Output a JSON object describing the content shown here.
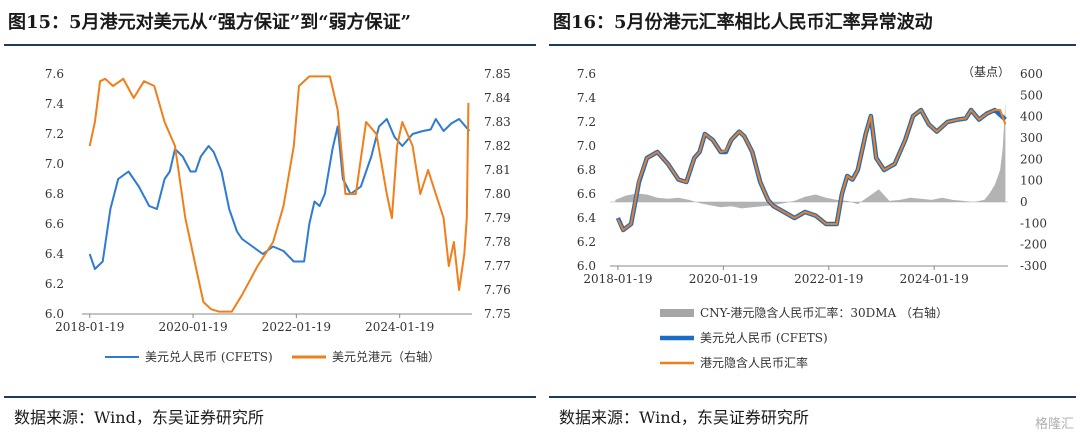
{
  "chart_data": [
    {
      "type": "line",
      "title": "图15：5月港元对美元从“强方保证”到“弱方保证”",
      "source": "数据来源：Wind，东吴证券研究所",
      "x_ticks": [
        "2018-01-19",
        "2020-01-19",
        "2022-01-19",
        "2024-01-19"
      ],
      "y_left": {
        "range": [
          6.0,
          7.6
        ],
        "ticks": [
          "6.0",
          "6.2",
          "6.4",
          "6.6",
          "6.8",
          "7.0",
          "7.2",
          "7.4",
          "7.6"
        ]
      },
      "y_right": {
        "range": [
          7.75,
          7.85
        ],
        "ticks": [
          "7.75",
          "7.76",
          "7.77",
          "7.78",
          "7.79",
          "7.80",
          "7.81",
          "7.82",
          "7.83",
          "7.84",
          "7.85"
        ]
      },
      "series": [
        {
          "name": "美元兑人民币 (CFETS)",
          "color": "#2f7bd1",
          "axis": "left",
          "x": [
            2018.05,
            2018.15,
            2018.3,
            2018.45,
            2018.6,
            2018.8,
            2019.0,
            2019.2,
            2019.35,
            2019.5,
            2019.6,
            2019.7,
            2019.85,
            2020.0,
            2020.1,
            2020.2,
            2020.35,
            2020.45,
            2020.6,
            2020.75,
            2020.9,
            2021.0,
            2021.2,
            2021.4,
            2021.6,
            2021.8,
            2022.0,
            2022.2,
            2022.3,
            2022.4,
            2022.5,
            2022.6,
            2022.75,
            2022.85,
            2022.95,
            2023.1,
            2023.3,
            2023.5,
            2023.65,
            2023.8,
            2023.95,
            2024.1,
            2024.3,
            2024.5,
            2024.65,
            2024.75,
            2024.9,
            2025.05,
            2025.2,
            2025.3,
            2025.4
          ],
          "y": [
            6.4,
            6.3,
            6.35,
            6.7,
            6.9,
            6.95,
            6.85,
            6.72,
            6.7,
            6.9,
            6.95,
            7.1,
            7.05,
            6.95,
            6.95,
            7.05,
            7.12,
            7.08,
            6.95,
            6.7,
            6.55,
            6.5,
            6.45,
            6.4,
            6.45,
            6.42,
            6.35,
            6.35,
            6.6,
            6.75,
            6.72,
            6.8,
            7.1,
            7.25,
            6.9,
            6.8,
            6.85,
            7.05,
            7.25,
            7.3,
            7.18,
            7.12,
            7.2,
            7.22,
            7.23,
            7.3,
            7.22,
            7.27,
            7.3,
            7.26,
            7.22
          ]
        },
        {
          "name": "美元兑港元（右轴）",
          "color": "#f07f1a",
          "axis": "right",
          "x": [
            2018.05,
            2018.15,
            2018.25,
            2018.35,
            2018.5,
            2018.7,
            2018.9,
            2019.1,
            2019.3,
            2019.5,
            2019.7,
            2019.9,
            2020.0,
            2020.1,
            2020.25,
            2020.4,
            2020.55,
            2020.8,
            2021.0,
            2021.3,
            2021.6,
            2021.8,
            2022.0,
            2022.1,
            2022.3,
            2022.5,
            2022.7,
            2022.85,
            2023.0,
            2023.2,
            2023.4,
            2023.6,
            2023.8,
            2023.9,
            2024.0,
            2024.1,
            2024.3,
            2024.45,
            2024.6,
            2024.75,
            2024.9,
            2025.0,
            2025.1,
            2025.2,
            2025.3,
            2025.35,
            2025.38
          ],
          "y": [
            7.82,
            7.83,
            7.847,
            7.848,
            7.845,
            7.848,
            7.84,
            7.847,
            7.845,
            7.83,
            7.82,
            7.79,
            7.78,
            7.77,
            7.755,
            7.752,
            7.751,
            7.751,
            7.758,
            7.77,
            7.78,
            7.795,
            7.82,
            7.845,
            7.849,
            7.849,
            7.849,
            7.835,
            7.8,
            7.8,
            7.83,
            7.825,
            7.8,
            7.79,
            7.82,
            7.83,
            7.82,
            7.8,
            7.81,
            7.8,
            7.79,
            7.77,
            7.78,
            7.76,
            7.775,
            7.79,
            7.838
          ]
        }
      ]
    },
    {
      "type": "line",
      "title": "图16：5月份港元汇率相比人民币汇率异常波动",
      "source": "数据来源：Wind，东吴证券研究所",
      "unit_label": "（基点）",
      "x_ticks": [
        "2018-01-19",
        "2020-01-19",
        "2022-01-19",
        "2024-01-19"
      ],
      "y_left": {
        "range": [
          6.0,
          7.6
        ],
        "ticks": [
          "6.0",
          "6.2",
          "6.4",
          "6.6",
          "6.8",
          "7.0",
          "7.2",
          "7.4",
          "7.6"
        ]
      },
      "y_right": {
        "range": [
          -300,
          600
        ],
        "ticks": [
          "-300",
          "-200",
          "-100",
          "0",
          "100",
          "200",
          "300",
          "400",
          "500",
          "600"
        ]
      },
      "series": [
        {
          "name": "CNY-港元隐含人民币汇率：30DMA （右轴）",
          "color": "#a6a6a6",
          "axis": "right",
          "kind": "area",
          "x": [
            2018.0,
            2018.2,
            2018.4,
            2018.6,
            2018.8,
            2019.0,
            2019.2,
            2019.4,
            2019.6,
            2019.8,
            2020.0,
            2020.2,
            2020.4,
            2020.6,
            2020.8,
            2021.0,
            2021.2,
            2021.4,
            2021.6,
            2021.8,
            2022.0,
            2022.2,
            2022.4,
            2022.6,
            2022.8,
            2023.0,
            2023.2,
            2023.4,
            2023.6,
            2023.8,
            2024.0,
            2024.2,
            2024.4,
            2024.6,
            2024.8,
            2025.0,
            2025.1,
            2025.2,
            2025.3,
            2025.35,
            2025.4
          ],
          "y": [
            10,
            30,
            40,
            35,
            20,
            15,
            20,
            10,
            -5,
            -15,
            -25,
            -20,
            -30,
            -25,
            -20,
            -15,
            -5,
            5,
            25,
            35,
            20,
            10,
            5,
            -10,
            25,
            60,
            5,
            10,
            20,
            15,
            10,
            20,
            10,
            5,
            0,
            10,
            40,
            80,
            150,
            250,
            470
          ]
        },
        {
          "name": "美元兑人民币 (CFETS)",
          "color": "#1a6cc8",
          "axis": "left",
          "x": [
            2018.05,
            2018.15,
            2018.3,
            2018.45,
            2018.6,
            2018.8,
            2019.0,
            2019.2,
            2019.35,
            2019.5,
            2019.6,
            2019.7,
            2019.85,
            2020.0,
            2020.1,
            2020.2,
            2020.35,
            2020.45,
            2020.6,
            2020.75,
            2020.9,
            2021.0,
            2021.2,
            2021.4,
            2021.6,
            2021.8,
            2022.0,
            2022.2,
            2022.3,
            2022.4,
            2022.5,
            2022.6,
            2022.75,
            2022.85,
            2022.95,
            2023.1,
            2023.3,
            2023.5,
            2023.65,
            2023.8,
            2023.95,
            2024.1,
            2024.3,
            2024.5,
            2024.65,
            2024.75,
            2024.9,
            2025.05,
            2025.2,
            2025.3,
            2025.4
          ],
          "y": [
            6.4,
            6.3,
            6.35,
            6.7,
            6.9,
            6.95,
            6.85,
            6.72,
            6.7,
            6.9,
            6.95,
            7.1,
            7.05,
            6.95,
            6.95,
            7.05,
            7.12,
            7.08,
            6.95,
            6.7,
            6.55,
            6.5,
            6.45,
            6.4,
            6.45,
            6.42,
            6.35,
            6.35,
            6.6,
            6.75,
            6.72,
            6.8,
            7.1,
            7.25,
            6.9,
            6.8,
            6.85,
            7.05,
            7.25,
            7.3,
            7.18,
            7.12,
            7.2,
            7.22,
            7.23,
            7.3,
            7.22,
            7.27,
            7.3,
            7.26,
            7.22
          ]
        },
        {
          "name": "港元隐含人民币汇率",
          "color": "#f07f1a",
          "axis": "left",
          "x": [
            2018.05,
            2018.15,
            2018.3,
            2018.45,
            2018.6,
            2018.8,
            2019.0,
            2019.2,
            2019.35,
            2019.5,
            2019.6,
            2019.7,
            2019.85,
            2020.0,
            2020.1,
            2020.2,
            2020.35,
            2020.45,
            2020.6,
            2020.75,
            2020.9,
            2021.0,
            2021.2,
            2021.4,
            2021.6,
            2021.8,
            2022.0,
            2022.2,
            2022.3,
            2022.4,
            2022.5,
            2022.6,
            2022.75,
            2022.85,
            2022.95,
            2023.1,
            2023.3,
            2023.5,
            2023.65,
            2023.8,
            2023.95,
            2024.1,
            2024.3,
            2024.5,
            2024.65,
            2024.75,
            2024.9,
            2025.05,
            2025.2,
            2025.3,
            2025.4
          ],
          "y": [
            6.39,
            6.3,
            6.35,
            6.71,
            6.9,
            6.95,
            6.85,
            6.72,
            6.7,
            6.9,
            6.95,
            7.1,
            7.05,
            6.95,
            6.96,
            7.05,
            7.12,
            7.08,
            6.95,
            6.7,
            6.55,
            6.5,
            6.45,
            6.4,
            6.45,
            6.42,
            6.35,
            6.35,
            6.6,
            6.75,
            6.72,
            6.8,
            7.1,
            7.25,
            6.9,
            6.8,
            6.85,
            7.05,
            7.25,
            7.3,
            7.18,
            7.12,
            7.2,
            7.22,
            7.23,
            7.3,
            7.22,
            7.27,
            7.3,
            7.3,
            7.18
          ]
        }
      ]
    }
  ],
  "watermark": "格隆汇"
}
